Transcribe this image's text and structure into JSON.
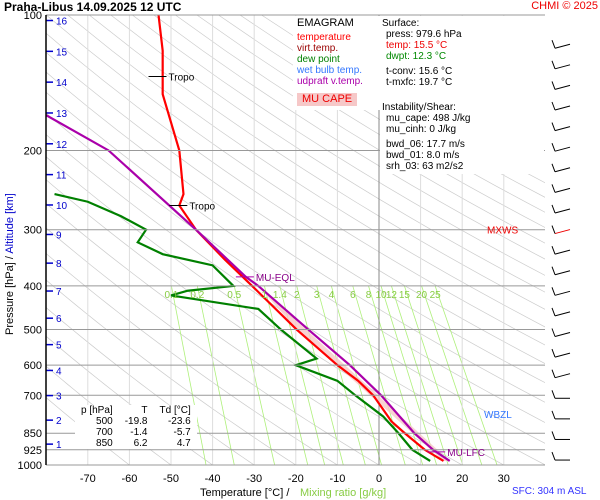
{
  "header": {
    "title": "Praha-Libus     14.09.2025 12 UTC",
    "credit": "CHMI © 2025",
    "sfc": "SFC: 304 m ASL"
  },
  "legend": {
    "title": "EMAGRAM",
    "items": [
      {
        "label": "temperature",
        "color": "#ff0000"
      },
      {
        "label": "virt.temp.",
        "color": "#990000"
      },
      {
        "label": "dew point",
        "color": "#008000"
      },
      {
        "label": "wet bulb temp.",
        "color": "#3377ff"
      },
      {
        "label": "udpraft v.temp.",
        "color": "#aa00aa"
      }
    ],
    "cape_label": "MU CAPE"
  },
  "info": {
    "surface_title": "Surface:",
    "press": "press: 979.6 hPa",
    "temp": "temp: 15.5 °C",
    "dwpt": "dwpt: 12.3 °C",
    "tconv": "t-conv: 15.6 °C",
    "tmxfc": "t-mxfc: 19.7 °C",
    "inst_title": "Instability/Shear:",
    "mu_cape": "mu_cape: 498 J/kg",
    "mu_cinh": "mu_cinh: 0 J/kg",
    "bwd06": "bwd_06: 17.7 m/s",
    "bwd01": "bwd_01: 8.0 m/s",
    "srh03": "srh_03: 63 m2/s2"
  },
  "table": {
    "headers": [
      "p [hPa]",
      "T",
      "Td [°C]"
    ],
    "rows": [
      [
        "500",
        "-19.8",
        "-23.6"
      ],
      [
        "700",
        "-1.4",
        "-5.7"
      ],
      [
        "850",
        "6.2",
        "4.7"
      ]
    ]
  },
  "chart_data": {
    "type": "line",
    "title": "Praha-Libus 14.09.2025 12 UTC",
    "xlabel": "Temperature [°C]",
    "xlabel2": "Mixing ratio [g/kg]",
    "ylabel": "Pressure [hPa]",
    "ylabel2": "Altitude [km]",
    "xlim": [
      -81,
      40
    ],
    "ylim": [
      1000,
      100
    ],
    "grid": true,
    "x_ticks": [
      -70,
      -60,
      -50,
      -40,
      -30,
      -20,
      -10,
      0,
      10,
      20,
      30
    ],
    "p_ticks": [
      100,
      200,
      300,
      400,
      500,
      600,
      700,
      850,
      925,
      1000
    ],
    "km_ticks": [
      1,
      2,
      3,
      4,
      5,
      6,
      7,
      8,
      9,
      10,
      11,
      12,
      13,
      14,
      15,
      16
    ],
    "mixing_ratio_labels": [
      "0.1",
      "0.2",
      "0.5",
      "1",
      "1.4",
      "2",
      "3",
      "4",
      "6",
      "8",
      "10",
      "12",
      "15",
      "20",
      "25"
    ],
    "series": [
      {
        "name": "temperature",
        "color": "#ff0000",
        "p": [
          979.6,
          925,
          850,
          800,
          700,
          650,
          600,
          500,
          400,
          350,
          300,
          265,
          250,
          200,
          150,
          120,
          100
        ],
        "t": [
          15.5,
          11,
          6.2,
          3,
          -1.4,
          -5,
          -10,
          -19.8,
          -30.5,
          -37,
          -44,
          -48,
          -47,
          -48,
          -52,
          -52,
          -53
        ]
      },
      {
        "name": "dew point",
        "color": "#008000",
        "p": [
          979.6,
          925,
          850,
          780,
          700,
          650,
          600,
          580,
          500,
          450,
          420,
          410,
          400,
          360,
          340,
          320,
          300,
          280,
          260,
          250
        ],
        "t": [
          12.3,
          8,
          4.7,
          1,
          -5.7,
          -10,
          -20,
          -15,
          -23.6,
          -29,
          -50,
          -46,
          -35,
          -40,
          -52,
          -58,
          -56,
          -62,
          -70,
          -78
        ]
      },
      {
        "name": "udpraft v.temp.",
        "color": "#aa00aa",
        "p": [
          979.6,
          925,
          850,
          700,
          600,
          500,
          400,
          382,
          300,
          200,
          167
        ],
        "t": [
          17,
          13,
          8.5,
          0.5,
          -7,
          -17,
          -29,
          -32,
          -44,
          -65,
          -80
        ]
      }
    ],
    "annotations": [
      {
        "text": "Tropo",
        "p": 137,
        "t": -53
      },
      {
        "text": "Tropo",
        "p": 265,
        "t": -48
      },
      {
        "text": "MU-EQL",
        "p": 382,
        "t": -32
      },
      {
        "text": "MU-LFC",
        "p": 935,
        "t": 14
      },
      {
        "text": "MXWS",
        "p": 300,
        "side": "right"
      },
      {
        "text": "WBZL",
        "p": 770,
        "side": "right"
      }
    ]
  }
}
